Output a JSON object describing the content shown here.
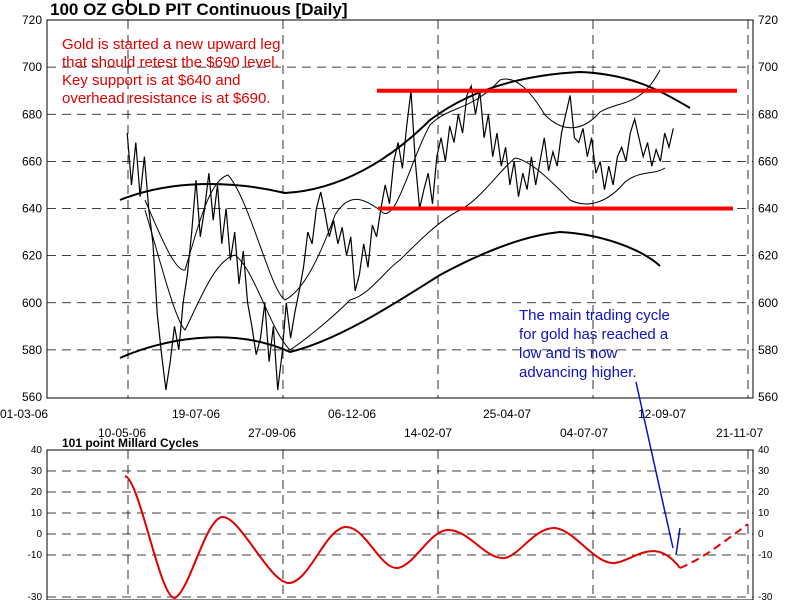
{
  "chart_data": [
    {
      "type": "line",
      "title": "100 OZ GOLD PIT Continuous  [Daily]",
      "x_tick_labels_upper": [
        "01-03-06",
        "19-07-06",
        "06-12-06",
        "25-04-07",
        "12-09-07"
      ],
      "x_tick_labels_lower": [
        "10-05-06",
        "27-09-06",
        "14-02-07",
        "04-07-07",
        "21-11-07"
      ],
      "x_tick_index": [
        0,
        1,
        2,
        3,
        4,
        5,
        6,
        7,
        8,
        9
      ],
      "ylim": [
        560,
        720
      ],
      "y_ticks": [
        560,
        580,
        600,
        620,
        640,
        660,
        680,
        700,
        720
      ],
      "series": [
        {
          "x": [
            8,
            10,
            12,
            14,
            16,
            18,
            20,
            22,
            24,
            26,
            28,
            30,
            32,
            34,
            36,
            38,
            40,
            42,
            44,
            46,
            48,
            50,
            52,
            54,
            56,
            58,
            60,
            62,
            64,
            66,
            68,
            70,
            72,
            74,
            76,
            78,
            80,
            82,
            84,
            86,
            88,
            90,
            92,
            94,
            96,
            98,
            100,
            102,
            104,
            106,
            108,
            110,
            112,
            114,
            116,
            118,
            120,
            122,
            124,
            126,
            128,
            130,
            132,
            134,
            136,
            138,
            140,
            142,
            144,
            146,
            148,
            150,
            152,
            154,
            156,
            158,
            160,
            162,
            164,
            166,
            168,
            170,
            172,
            174,
            176,
            178,
            180,
            182,
            184,
            186,
            188,
            190,
            192,
            194,
            196,
            198,
            200,
            202,
            204,
            206,
            208,
            210,
            212,
            214,
            216,
            218,
            220,
            222,
            224,
            226,
            228,
            230,
            232,
            234,
            236,
            238,
            240,
            242,
            244,
            246,
            248,
            250,
            252,
            254,
            256,
            258,
            260,
            262
          ],
          "values": [
            672,
            650,
            668,
            645,
            662,
            640,
            625,
            595,
            578,
            563,
            575,
            590,
            580,
            600,
            612,
            630,
            652,
            628,
            640,
            655,
            635,
            650,
            625,
            640,
            618,
            630,
            608,
            622,
            600,
            590,
            578,
            585,
            600,
            575,
            590,
            563,
            578,
            600,
            585,
            596,
            605,
            615,
            630,
            625,
            640,
            647,
            638,
            628,
            635,
            625,
            632,
            620,
            628,
            605,
            612,
            625,
            615,
            633,
            628,
            640,
            650,
            642,
            660,
            668,
            657,
            675,
            690,
            660,
            640,
            648,
            655,
            642,
            662,
            670,
            660,
            675,
            668,
            680,
            672,
            688,
            692,
            680,
            690,
            670,
            680,
            662,
            672,
            658,
            666,
            650,
            660,
            645,
            655,
            648,
            662,
            650,
            660,
            670,
            656,
            664,
            658,
            672,
            680,
            688,
            670,
            668,
            674,
            662,
            670,
            655,
            660,
            648,
            658,
            650,
            662,
            666,
            660,
            672,
            678,
            670,
            662,
            668,
            658,
            665,
            660,
            672,
            666,
            674
          ]
        }
      ],
      "resistance": 690,
      "support": 640,
      "annotations": [
        "Gold is started a new upward leg",
        "that should retest the $690 level.",
        "Key support is at $640 and",
        "overhead resistance is at $690.",
        "The main trading cycle",
        "for gold has reached a",
        "low and is now",
        "advancing higher."
      ]
    },
    {
      "type": "line",
      "title": "101 point Millard Cycles",
      "ylim": [
        -30,
        40
      ],
      "y_ticks": [
        -30,
        -10,
        0,
        10,
        20,
        30,
        40
      ]
    }
  ],
  "colors": {
    "price": "#000000",
    "resistance": "#ff0000",
    "support": "#ff0000",
    "cycle": "#e00000",
    "red_note": "#e00000",
    "blue_note": "#1010c0"
  }
}
